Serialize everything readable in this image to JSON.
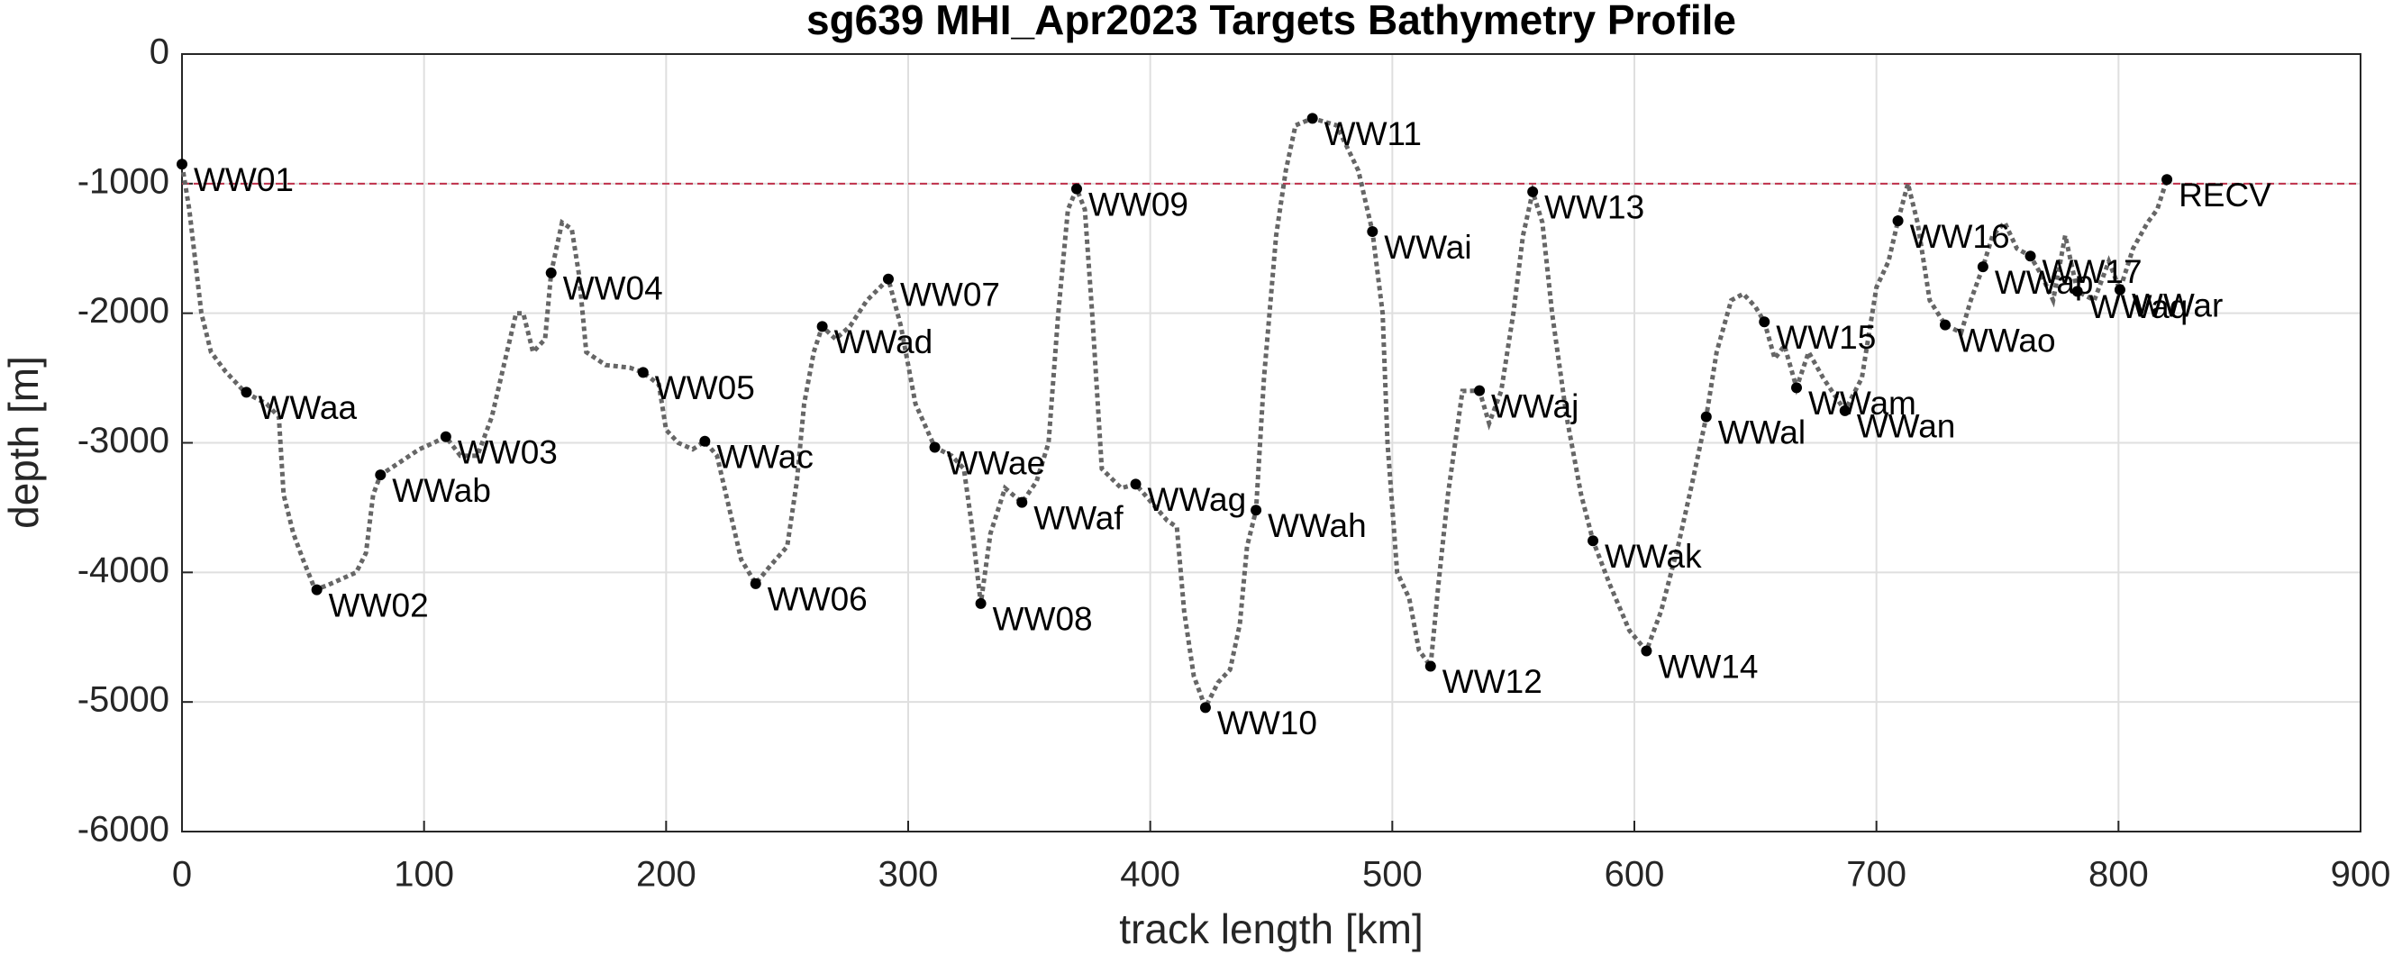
{
  "chart_data": {
    "type": "line",
    "title": "sg639 MHI_Apr2023 Targets Bathymetry Profile",
    "x_label": "track length [km]",
    "y_label": "depth [m]",
    "xlim": [
      0,
      900
    ],
    "ylim": [
      -6000,
      0
    ],
    "xticks": [
      0,
      100,
      200,
      300,
      400,
      500,
      600,
      700,
      800,
      900
    ],
    "yticks": [
      0,
      -1000,
      -2000,
      -3000,
      -4000,
      -5000,
      -6000
    ],
    "grid": true,
    "reference_line": {
      "value": -1000,
      "color": "#c0304a"
    },
    "series": [
      {
        "color": "#666666",
        "x": [
          0,
          3,
          8,
          12,
          18,
          26,
          35,
          40,
          42,
          46,
          50,
          55,
          60,
          66,
          72,
          76,
          79,
          82,
          90,
          98,
          104,
          109,
          115,
          122,
          128,
          133,
          138,
          141,
          145,
          150,
          152.5,
          157,
          161,
          164,
          167,
          175,
          185,
          190.5,
          197,
          200,
          205,
          211,
          216,
          221,
          226,
          231,
          237,
          243,
          250,
          254,
          257,
          261,
          264.5,
          270,
          276,
          283,
          291.8,
          297,
          303,
          311,
          318,
          323,
          326,
          330,
          334,
          340,
          347,
          353,
          358,
          362,
          366,
          369.6,
          373,
          376,
          380,
          388,
          394,
          400,
          407,
          411,
          414,
          418,
          422.8,
          428,
          433,
          437,
          440,
          443.7,
          447,
          452,
          456,
          460,
          467,
          477,
          486,
          491.8,
          496,
          498,
          502,
          507,
          511,
          515.8,
          519,
          523,
          529,
          536,
          540,
          545,
          550,
          554,
          558,
          562,
          566,
          572,
          578,
          582.9,
          590,
          598,
          605,
          611,
          618,
          624,
          629.7,
          634,
          640,
          645,
          650,
          653.7,
          658,
          662,
          667,
          672,
          678,
          687,
          694,
          700,
          705,
          708.9,
          713,
          717,
          722,
          728.4,
          735,
          739,
          744,
          748,
          753,
          758,
          763.6,
          768,
          773,
          778,
          783,
          790,
          796,
          800.6,
          806,
          812,
          816,
          820
        ],
        "values": [
          -850,
          -1200,
          -2000,
          -2300,
          -2450,
          -2610,
          -2700,
          -2800,
          -3400,
          -3700,
          -3900,
          -4134,
          -4100,
          -4050,
          -4000,
          -3850,
          -3400,
          -3248,
          -3150,
          -3050,
          -3000,
          -2953,
          -3100,
          -3100,
          -2800,
          -2400,
          -2000,
          -2000,
          -2300,
          -2200,
          -1689,
          -1300,
          -1350,
          -1700,
          -2300,
          -2400,
          -2420,
          -2457,
          -2550,
          -2900,
          -3000,
          -3050,
          -2988,
          -3100,
          -3500,
          -3900,
          -4087,
          -3950,
          -3800,
          -3300,
          -2700,
          -2300,
          -2102,
          -2200,
          -2100,
          -1900,
          -1736,
          -2100,
          -2700,
          -3035,
          -3100,
          -3200,
          -3600,
          -4240,
          -3700,
          -3350,
          -3460,
          -3300,
          -3000,
          -2000,
          -1200,
          -1040,
          -1200,
          -2000,
          -3200,
          -3350,
          -3319,
          -3450,
          -3600,
          -3650,
          -4300,
          -4800,
          -5043,
          -4850,
          -4750,
          -4400,
          -3800,
          -3520,
          -2500,
          -1400,
          -900,
          -550,
          -496,
          -550,
          -900,
          -1370,
          -2000,
          -3000,
          -4000,
          -4200,
          -4600,
          -4724,
          -4100,
          -3400,
          -2600,
          -2598,
          -2850,
          -2600,
          -2000,
          -1400,
          -1063,
          -1300,
          -2000,
          -2800,
          -3400,
          -3756,
          -4100,
          -4450,
          -4606,
          -4300,
          -3800,
          -3300,
          -2799,
          -2300,
          -1900,
          -1850,
          -1950,
          -2067,
          -2350,
          -2250,
          -2575,
          -2300,
          -2500,
          -2752,
          -2500,
          -1800,
          -1600,
          -1287,
          -1000,
          -1300,
          -1900,
          -2090,
          -2150,
          -1900,
          -1642,
          -1400,
          -1300,
          -1500,
          -1559,
          -1700,
          -1900,
          -1400,
          -1831,
          -1900,
          -1600,
          -1819,
          -1500,
          -1300,
          -1200,
          -968
        ]
      }
    ],
    "targets": {
      "color": "#000000",
      "names": [
        "WW01",
        "WWaa",
        "WW02",
        "WWab",
        "WW03",
        "WW04",
        "WW05",
        "WWac",
        "WW06",
        "WWad",
        "WW07",
        "WWae",
        "WW08",
        "WWaf",
        "WW09",
        "WWag",
        "WW10",
        "WWah",
        "WW11",
        "WWai",
        "WW12",
        "WWaj",
        "WW13",
        "WWak",
        "WW14",
        "WWal",
        "WW15",
        "WWam",
        "WWan",
        "WW16",
        "WWao",
        "WWap",
        "WW17",
        "WWaq",
        "WWar",
        "RECV"
      ],
      "x": [
        0,
        26.6,
        55.7,
        82,
        109,
        152.5,
        190.5,
        216,
        237,
        264.5,
        291.8,
        311,
        330,
        347,
        369.6,
        394,
        422.8,
        443.7,
        467,
        491.8,
        515.8,
        536,
        558,
        582.9,
        605,
        629.7,
        653.7,
        667,
        687,
        708.9,
        728.4,
        744,
        763.6,
        783,
        800.6,
        820
      ],
      "y": [
        -850,
        -2610,
        -4134,
        -3248,
        -2953,
        -1689,
        -2457,
        -2988,
        -4087,
        -2102,
        -1736,
        -3035,
        -4240,
        -3460,
        -1040,
        -3319,
        -5043,
        -3520,
        -496,
        -1370,
        -4724,
        -2598,
        -1063,
        -3756,
        -4606,
        -2799,
        -2067,
        -2575,
        -2752,
        -1287,
        -2090,
        -1642,
        -1559,
        -1831,
        -1819,
        -968
      ]
    }
  }
}
